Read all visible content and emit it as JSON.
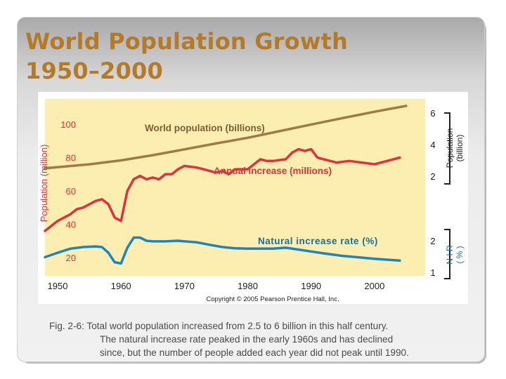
{
  "slide": {
    "title_line1": "World Population Growth",
    "title_line2": "1950–2000",
    "caption_line1": "Fig. 2-6: Total world population increased from 2.5 to 6 billion in this half century.",
    "caption_line2": "The natural increase rate peaked in the early 1960s and has declined",
    "caption_line3": "since, but the number of people added each year did not peak until 1990."
  },
  "chart_data": {
    "type": "line",
    "x_ticks": [
      "1950",
      "1960",
      "1970",
      "1980",
      "1990",
      "2000"
    ],
    "xlim": [
      1948,
      2008
    ],
    "left_axis": {
      "label": "Population (million)",
      "ticks": [
        "20",
        "40",
        "60",
        "80",
        "100"
      ],
      "ylim": [
        10,
        107
      ]
    },
    "right_axis_population": {
      "label_line1": "Population",
      "label_line2": "(billion)",
      "ticks": [
        "2",
        "4",
        "6"
      ]
    },
    "right_axis_nir": {
      "label_line1": "N I R",
      "label_line2": "( % )",
      "ticks": [
        "1",
        "2"
      ]
    },
    "copyright": "Copyright © 2005 Pearson Prentice Hall, Inc.",
    "colors": {
      "population": "#a07a46",
      "annual": "#e0323d",
      "nir": "#1c84c4",
      "plot_bg": "#fbeeb0",
      "label": "#e0323d"
    },
    "series": [
      {
        "name": "World population (billions)",
        "x": [
          1948,
          1955,
          1960,
          1965,
          1970,
          1975,
          1980,
          1985,
          1990,
          1995,
          2000,
          2005
        ],
        "values": [
          2.5,
          2.75,
          3.0,
          3.33,
          3.7,
          4.07,
          4.43,
          4.85,
          5.27,
          5.68,
          6.08,
          6.45
        ]
      },
      {
        "name": "Annual increase (millions)",
        "x": [
          1948,
          1950,
          1952,
          1953,
          1954,
          1956,
          1957,
          1958,
          1959,
          1960,
          1961,
          1962,
          1963,
          1964,
          1965,
          1966,
          1967,
          1968,
          1969,
          1970,
          1972,
          1973,
          1975,
          1976,
          1977,
          1978,
          1979,
          1980,
          1982,
          1983,
          1984,
          1986,
          1987,
          1988,
          1989,
          1990,
          1991,
          1992,
          1994,
          1996,
          1998,
          2000,
          2002,
          2004
        ],
        "values": [
          36,
          42,
          46,
          49,
          50,
          54,
          55,
          52,
          44,
          42,
          60,
          67,
          69,
          67,
          68,
          67,
          70,
          70,
          73,
          75,
          74,
          73,
          71,
          72,
          70,
          73,
          73,
          73,
          79,
          78,
          78,
          79,
          83,
          85,
          84,
          85,
          80,
          79,
          77,
          78,
          77,
          76,
          78,
          80
        ]
      },
      {
        "name": "Natural increase rate (%)",
        "x": [
          1948,
          1950,
          1952,
          1954,
          1956,
          1957,
          1958,
          1959,
          1960,
          1961,
          1962,
          1963,
          1964,
          1965,
          1967,
          1969,
          1970,
          1972,
          1974,
          1976,
          1978,
          1980,
          1984,
          1986,
          1988,
          1990,
          1992,
          1995,
          2000,
          2004
        ],
        "values": [
          1.48,
          1.62,
          1.75,
          1.8,
          1.82,
          1.8,
          1.62,
          1.32,
          1.28,
          1.78,
          2.1,
          2.1,
          2.0,
          1.98,
          1.98,
          2.0,
          1.98,
          1.95,
          1.87,
          1.8,
          1.76,
          1.75,
          1.75,
          1.78,
          1.72,
          1.66,
          1.6,
          1.52,
          1.43,
          1.37
        ]
      }
    ]
  }
}
